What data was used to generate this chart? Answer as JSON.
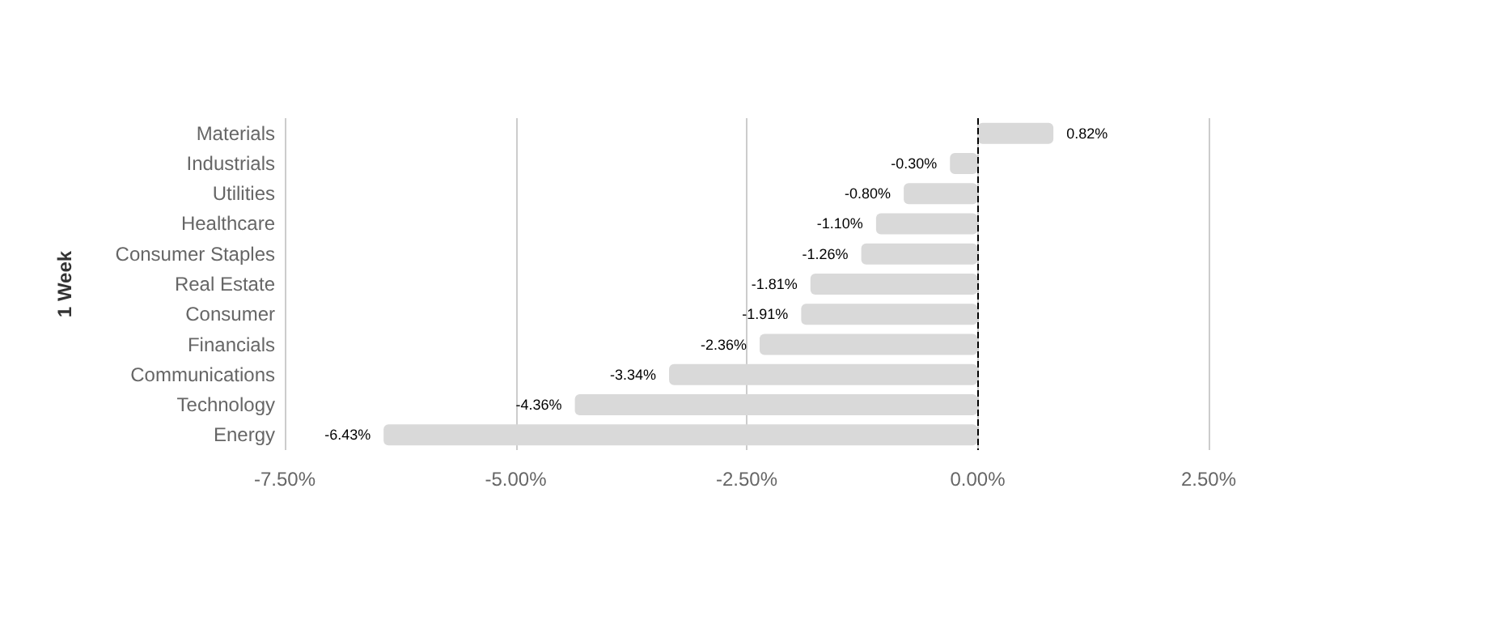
{
  "chart_data": {
    "type": "bar",
    "orientation": "horizontal",
    "ylabel": "1 Week",
    "categories": [
      "Materials",
      "Industrials",
      "Utilities",
      "Healthcare",
      "Consumer Staples",
      "Real Estate",
      "Consumer",
      "Financials",
      "Communications",
      "Technology",
      "Energy"
    ],
    "series": [
      {
        "color": "#d9d9d9",
        "values": [
          0.82,
          -0.3,
          -0.8,
          -1.1,
          -1.26,
          -1.81,
          -1.91,
          -2.36,
          -3.34,
          -4.36,
          -6.43
        ],
        "value_labels": [
          "0.82%",
          "-0.30%",
          "-0.80%",
          "-1.10%",
          "-1.26%",
          "-1.81%",
          "-1.91%",
          "-2.36%",
          "-3.34%",
          "-4.36%",
          "-6.43%"
        ]
      }
    ],
    "xlim": [
      -7.5,
      2.5
    ],
    "xticks": [
      {
        "value": -7.5,
        "label": "-7.50%"
      },
      {
        "value": -5,
        "label": "-5.00%"
      },
      {
        "value": -2.5,
        "label": "-2.50%"
      },
      {
        "value": 0,
        "label": "0.00%"
      },
      {
        "value": 2.5,
        "label": "2.50%"
      }
    ],
    "grid": "x",
    "ref_lines": [
      {
        "axis": "x",
        "value": 0,
        "color": "#000000",
        "line_style": "dashed"
      }
    ]
  }
}
